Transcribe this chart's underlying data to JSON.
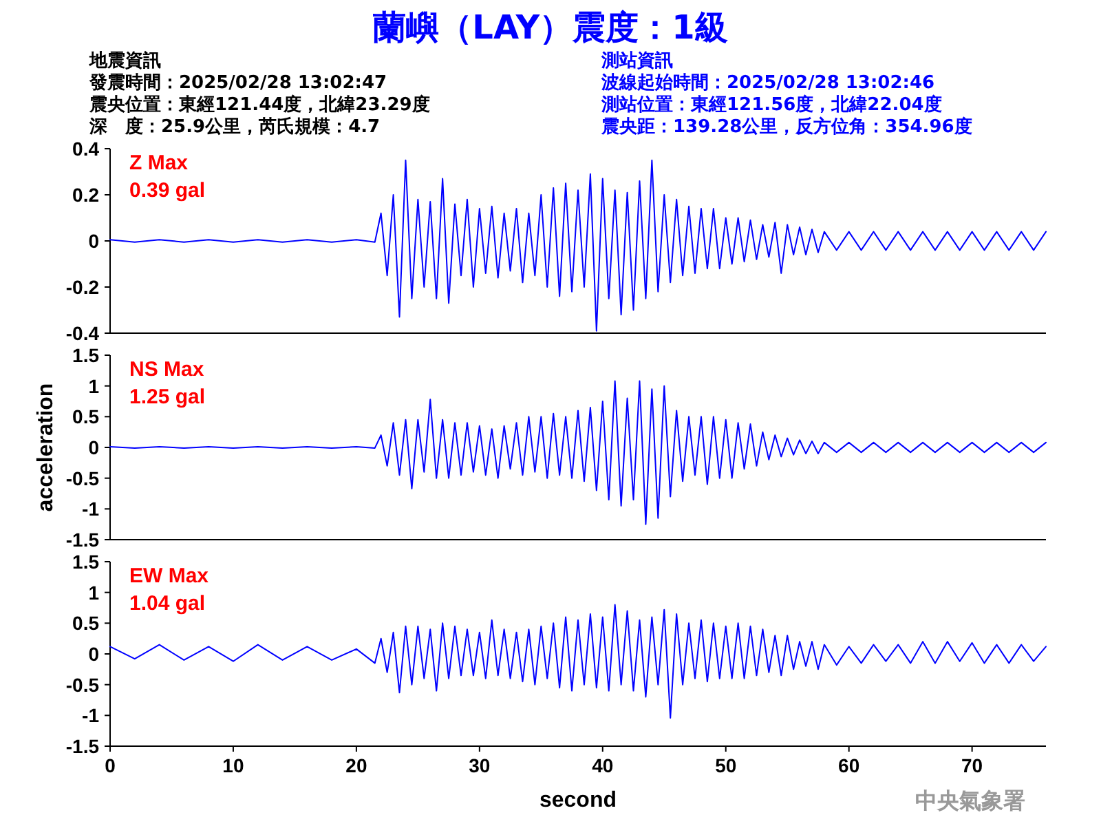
{
  "chart_data": [
    {
      "type": "line",
      "title": "蘭嶼（LAY）震度：1級",
      "annotations": [
        "地震資訊",
        "發震時間：2025/02/28 13:02:47",
        "震央位置：東經121.44度，北緯23.29度",
        "深　度：25.9公里，芮氏規模：4.7",
        "測站資訊",
        "波線起始時間：2025/02/28 13:02:46",
        "測站位置：東經121.56度，北緯22.04度",
        "震央距：139.28公里，反方位角：354.96度",
        "Z Max",
        "0.39 gal"
      ],
      "x": [
        0,
        2,
        4,
        6,
        8,
        10,
        12,
        14,
        16,
        18,
        20,
        21.5,
        22,
        22.5,
        23,
        23.5,
        24,
        24.5,
        25,
        25.5,
        26,
        26.5,
        27,
        27.5,
        28,
        28.5,
        29,
        29.5,
        30,
        30.5,
        31,
        31.5,
        32,
        32.5,
        33,
        33.5,
        34,
        34.5,
        35,
        35.5,
        36,
        36.5,
        37,
        37.5,
        38,
        38.5,
        39,
        39.5,
        40,
        40.5,
        41,
        41.5,
        42,
        42.5,
        43,
        43.5,
        44,
        44.5,
        45,
        45.5,
        46,
        46.5,
        47,
        47.5,
        48,
        48.5,
        49,
        49.5,
        50,
        50.5,
        51,
        51.5,
        52,
        52.5,
        53,
        53.5,
        54,
        54.5,
        55,
        55.5,
        56,
        56.5,
        57,
        57.5,
        58,
        59,
        60,
        61,
        62,
        63,
        64,
        65,
        66,
        67,
        68,
        69,
        70,
        71,
        72,
        73,
        74,
        75,
        76
      ],
      "series": [
        {
          "color": "#0000ff",
          "values": [
            0.005,
            -0.005,
            0.005,
            -0.005,
            0.005,
            -0.005,
            0.005,
            -0.005,
            0.005,
            -0.005,
            0.005,
            -0.005,
            0.12,
            -0.15,
            0.2,
            -0.33,
            0.35,
            -0.25,
            0.18,
            -0.2,
            0.17,
            -0.25,
            0.27,
            -0.27,
            0.16,
            -0.15,
            0.18,
            -0.2,
            0.14,
            -0.14,
            0.15,
            -0.16,
            0.12,
            -0.13,
            0.14,
            -0.18,
            0.12,
            -0.15,
            0.2,
            -0.2,
            0.23,
            -0.24,
            0.25,
            -0.22,
            0.22,
            -0.2,
            0.29,
            -0.39,
            0.27,
            -0.25,
            0.22,
            -0.32,
            0.21,
            -0.3,
            0.26,
            -0.25,
            0.35,
            -0.22,
            0.2,
            -0.18,
            0.18,
            -0.15,
            0.15,
            -0.14,
            0.14,
            -0.12,
            0.14,
            -0.12,
            0.1,
            -0.1,
            0.1,
            -0.09,
            0.09,
            -0.08,
            0.07,
            -0.07,
            0.08,
            -0.14,
            0.07,
            -0.06,
            0.06,
            -0.06,
            0.05,
            -0.05,
            0.04,
            -0.04,
            0.04,
            -0.04,
            0.04,
            -0.04,
            0.04,
            -0.04,
            0.04,
            -0.04,
            0.04,
            -0.04,
            0.04,
            -0.04,
            0.04,
            -0.04,
            0.04,
            -0.04,
            0.04
          ]
        }
      ],
      "xlim": [
        0,
        76
      ],
      "ylim": [
        -0.4,
        0.4
      ],
      "yticks": [
        -0.4,
        -0.2,
        0,
        0.2,
        0.4
      ],
      "tick_labels": "y"
    },
    {
      "type": "line",
      "ylabel": "acceleration",
      "annotations": [
        "NS Max",
        "1.25 gal"
      ],
      "x": [
        0,
        2,
        4,
        6,
        8,
        10,
        12,
        14,
        16,
        18,
        20,
        21.5,
        22,
        22.5,
        23,
        23.5,
        24,
        24.5,
        25,
        25.5,
        26,
        26.5,
        27,
        27.5,
        28,
        28.5,
        29,
        29.5,
        30,
        30.5,
        31,
        31.5,
        32,
        32.5,
        33,
        33.5,
        34,
        34.5,
        35,
        35.5,
        36,
        36.5,
        37,
        37.5,
        38,
        38.5,
        39,
        39.5,
        40,
        40.5,
        41,
        41.5,
        42,
        42.5,
        43,
        43.5,
        44,
        44.5,
        45,
        45.5,
        46,
        46.5,
        47,
        47.5,
        48,
        48.5,
        49,
        49.5,
        50,
        50.5,
        51,
        51.5,
        52,
        52.5,
        53,
        53.5,
        54,
        54.5,
        55,
        55.5,
        56,
        56.5,
        57,
        57.5,
        58,
        59,
        60,
        61,
        62,
        63,
        64,
        65,
        66,
        67,
        68,
        69,
        70,
        71,
        72,
        73,
        74,
        75,
        76
      ],
      "series": [
        {
          "color": "#0000ff",
          "values": [
            0.01,
            -0.01,
            0.01,
            -0.01,
            0.01,
            -0.01,
            0.01,
            -0.01,
            0.01,
            -0.01,
            0.01,
            -0.01,
            0.2,
            -0.3,
            0.4,
            -0.45,
            0.45,
            -0.67,
            0.45,
            -0.4,
            0.78,
            -0.5,
            0.45,
            -0.5,
            0.4,
            -0.45,
            0.4,
            -0.4,
            0.35,
            -0.45,
            0.3,
            -0.5,
            0.35,
            -0.35,
            0.4,
            -0.45,
            0.5,
            -0.4,
            0.5,
            -0.5,
            0.55,
            -0.45,
            0.5,
            -0.5,
            0.6,
            -0.55,
            0.65,
            -0.7,
            0.75,
            -0.85,
            1.08,
            -0.95,
            0.8,
            -0.85,
            1.08,
            -1.25,
            0.95,
            -1.15,
            1.0,
            -0.8,
            0.6,
            -0.55,
            0.5,
            -0.45,
            0.5,
            -0.6,
            0.5,
            -0.5,
            0.45,
            -0.5,
            0.4,
            -0.35,
            0.38,
            -0.3,
            0.25,
            -0.2,
            0.2,
            -0.15,
            0.15,
            -0.12,
            0.12,
            -0.1,
            0.1,
            -0.1,
            0.08,
            -0.08,
            0.08,
            -0.08,
            0.08,
            -0.08,
            0.08,
            -0.08,
            0.08,
            -0.08,
            0.08,
            -0.08,
            0.08,
            -0.08,
            0.08,
            -0.08,
            0.08,
            -0.08,
            0.08
          ]
        }
      ],
      "xlim": [
        0,
        76
      ],
      "ylim": [
        -1.5,
        1.5
      ],
      "yticks": [
        -1.5,
        -1,
        -0.5,
        0,
        0.5,
        1,
        1.5
      ],
      "tick_labels": "y"
    },
    {
      "type": "line",
      "xlabel": "second",
      "annotations": [
        "中央氣象署",
        "EW Max",
        "1.04 gal"
      ],
      "x": [
        0,
        2,
        4,
        6,
        8,
        10,
        12,
        14,
        16,
        18,
        20,
        21.5,
        22,
        22.5,
        23,
        23.5,
        24,
        24.5,
        25,
        25.5,
        26,
        26.5,
        27,
        27.5,
        28,
        28.5,
        29,
        29.5,
        30,
        30.5,
        31,
        31.5,
        32,
        32.5,
        33,
        33.5,
        34,
        34.5,
        35,
        35.5,
        36,
        36.5,
        37,
        37.5,
        38,
        38.5,
        39,
        39.5,
        40,
        40.5,
        41,
        41.5,
        42,
        42.5,
        43,
        43.5,
        44,
        44.5,
        45,
        45.5,
        46,
        46.5,
        47,
        47.5,
        48,
        48.5,
        49,
        49.5,
        50,
        50.5,
        51,
        51.5,
        52,
        52.5,
        53,
        53.5,
        54,
        54.5,
        55,
        55.5,
        56,
        56.5,
        57,
        57.5,
        58,
        59,
        60,
        61,
        62,
        63,
        64,
        65,
        66,
        67,
        68,
        69,
        70,
        71,
        72,
        73,
        74,
        75,
        76
      ],
      "series": [
        {
          "color": "#0000ff",
          "values": [
            0.12,
            -0.08,
            0.15,
            -0.1,
            0.12,
            -0.12,
            0.15,
            -0.1,
            0.12,
            -0.1,
            0.08,
            -0.15,
            0.25,
            -0.3,
            0.35,
            -0.63,
            0.45,
            -0.5,
            0.45,
            -0.4,
            0.4,
            -0.6,
            0.5,
            -0.4,
            0.45,
            -0.35,
            0.4,
            -0.35,
            0.35,
            -0.4,
            0.55,
            -0.35,
            0.4,
            -0.4,
            0.35,
            -0.45,
            0.4,
            -0.5,
            0.45,
            -0.4,
            0.5,
            -0.55,
            0.6,
            -0.6,
            0.55,
            -0.5,
            0.65,
            -0.55,
            0.6,
            -0.6,
            0.8,
            -0.5,
            0.7,
            -0.6,
            0.55,
            -0.7,
            0.6,
            -0.5,
            0.72,
            -1.04,
            0.65,
            -0.5,
            0.5,
            -0.4,
            0.55,
            -0.45,
            0.5,
            -0.4,
            0.45,
            -0.4,
            0.5,
            -0.4,
            0.45,
            -0.35,
            0.4,
            -0.3,
            0.3,
            -0.35,
            0.3,
            -0.25,
            0.2,
            -0.2,
            0.2,
            -0.25,
            0.15,
            -0.18,
            0.12,
            -0.15,
            0.15,
            -0.12,
            0.15,
            -0.15,
            0.2,
            -0.15,
            0.2,
            -0.12,
            0.18,
            -0.15,
            0.15,
            -0.15,
            0.15,
            -0.12,
            0.12
          ]
        }
      ],
      "xlim": [
        0,
        76
      ],
      "xticks": [
        0,
        10,
        20,
        30,
        40,
        50,
        60,
        70
      ],
      "ylim": [
        -1.5,
        1.5
      ],
      "yticks": [
        -1.5,
        -1,
        -0.5,
        0,
        0.5,
        1,
        1.5
      ]
    }
  ]
}
